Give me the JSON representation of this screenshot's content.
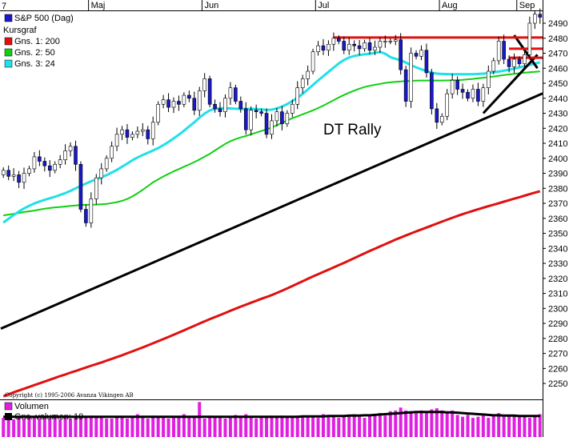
{
  "chart_data": {
    "type": "candlestick",
    "corner_label": "7",
    "months": [
      {
        "label": "Maj",
        "day": 17
      },
      {
        "label": "Jun",
        "day": 39
      },
      {
        "label": "Jul",
        "day": 61
      },
      {
        "label": "Aug",
        "day": 85
      },
      {
        "label": "Sep",
        "day": 100
      }
    ],
    "days": 105,
    "ylim": [
      2241,
      2498
    ],
    "yticks": [
      2250,
      2260,
      2270,
      2280,
      2290,
      2300,
      2310,
      2320,
      2330,
      2340,
      2350,
      2360,
      2370,
      2380,
      2390,
      2400,
      2410,
      2420,
      2430,
      2440,
      2450,
      2460,
      2470,
      2480,
      2490
    ],
    "legend": {
      "series": "S&P 500 (Dag)",
      "kursgraf": "Kursgraf",
      "ma1": "Gns. 1: 200",
      "ma2": "Gns. 2: 50",
      "ma3": "Gns. 3: 24"
    },
    "colors": {
      "up": "#ffffff",
      "down": "#1a1ac8",
      "ma200": "#e01010",
      "ma50": "#10d010",
      "ma24": "#20e0e8",
      "trend": "#000000",
      "resistance": "#e01010",
      "volume": "#e020e0",
      "volume_avg": "#000000"
    },
    "closes": [
      2392,
      2388,
      2389,
      2384,
      2390,
      2393,
      2401,
      2398,
      2395,
      2392,
      2396,
      2399,
      2405,
      2408,
      2396,
      2366,
      2357,
      2373,
      2387,
      2393,
      2400,
      2408,
      2416,
      2419,
      2414,
      2416,
      2418,
      2419,
      2413,
      2424,
      2436,
      2439,
      2434,
      2438,
      2436,
      2442,
      2440,
      2432,
      2445,
      2453,
      2436,
      2433,
      2431,
      2440,
      2447,
      2438,
      2433,
      2419,
      2432,
      2431,
      2430,
      2416,
      2425,
      2431,
      2423,
      2430,
      2436,
      2447,
      2453,
      2458,
      2471,
      2475,
      2472,
      2476,
      2480,
      2478,
      2472,
      2476,
      2475,
      2473,
      2477,
      2472,
      2474,
      2478,
      2478,
      2478,
      2479,
      2459,
      2438,
      2470,
      2468,
      2472,
      2457,
      2433,
      2424,
      2428,
      2443,
      2452,
      2446,
      2444,
      2440,
      2446,
      2438,
      2447,
      2458,
      2465,
      2478,
      2466,
      2461,
      2466,
      2463,
      2469,
      2490,
      2496,
      2494
    ],
    "ma200": [
      2241.5,
      2242.8,
      2244.1,
      2245.3,
      2246.5,
      2247.7,
      2248.9,
      2250.1,
      2251.3,
      2252.5,
      2253.7,
      2254.9,
      2256.0,
      2257.2,
      2258.3,
      2259.5,
      2260.6,
      2261.8,
      2262.9,
      2264.0,
      2265.2,
      2266.4,
      2267.6,
      2268.8,
      2270.1,
      2271.4,
      2272.7,
      2274.0,
      2275.4,
      2276.8,
      2278.2,
      2279.6,
      2281.0,
      2282.5,
      2283.9,
      2285.4,
      2286.9,
      2288.4,
      2289.9,
      2291.4,
      2292.8,
      2294.2,
      2295.6,
      2297.0,
      2298.4,
      2299.8,
      2301.2,
      2302.5,
      2303.8,
      2305.1,
      2306.4,
      2307.6,
      2308.9,
      2310.3,
      2311.8,
      2313.3,
      2314.9,
      2316.5,
      2318.1,
      2319.7,
      2321.3,
      2322.8,
      2324.3,
      2325.8,
      2327.3,
      2328.8,
      2330.3,
      2331.9,
      2333.5,
      2335.1,
      2336.7,
      2338.3,
      2339.8,
      2341.3,
      2342.8,
      2344.3,
      2345.8,
      2347.2,
      2348.6,
      2350.0,
      2351.3,
      2352.6,
      2353.9,
      2355.2,
      2356.5,
      2357.8,
      2359.1,
      2360.4,
      2361.6,
      2362.8,
      2363.9,
      2365.0,
      2366.1,
      2367.1,
      2368.1,
      2369.1,
      2370.1,
      2371.1,
      2372.1,
      2373.1,
      2374.1,
      2375.1,
      2376.1,
      2377.1,
      2378.1
    ],
    "ma50": [
      2362.0,
      2362.5,
      2363.0,
      2363.6,
      2364.2,
      2364.7,
      2365.2,
      2365.8,
      2366.4,
      2366.9,
      2367.3,
      2367.6,
      2367.9,
      2368.3,
      2368.6,
      2368.9,
      2369.0,
      2369.1,
      2369.2,
      2369.4,
      2369.6,
      2370.2,
      2370.8,
      2371.7,
      2372.9,
      2374.6,
      2376.7,
      2379.0,
      2381.5,
      2384.0,
      2386.0,
      2387.9,
      2389.6,
      2391.3,
      2392.8,
      2394.4,
      2395.9,
      2397.5,
      2399.2,
      2401.1,
      2403.0,
      2405.2,
      2407.4,
      2409.6,
      2411.4,
      2412.8,
      2413.9,
      2414.9,
      2416.0,
      2417.1,
      2418.2,
      2419.3,
      2420.5,
      2422.0,
      2423.6,
      2425.2,
      2426.7,
      2428.0,
      2429.3,
      2430.6,
      2432.0,
      2433.5,
      2435.1,
      2436.9,
      2438.7,
      2440.5,
      2442.2,
      2443.7,
      2445.1,
      2446.4,
      2447.5,
      2448.3,
      2449.0,
      2449.6,
      2450.2,
      2450.6,
      2450.9,
      2451.2,
      2451.4,
      2451.6,
      2451.7,
      2451.8,
      2451.8,
      2451.8,
      2451.8,
      2451.8,
      2451.9,
      2452.0,
      2452.1,
      2452.3,
      2452.6,
      2452.9,
      2453.3,
      2453.7,
      2454.1,
      2454.5,
      2455.0,
      2455.5,
      2455.9,
      2456.3,
      2456.7,
      2457.0,
      2457.3,
      2457.6,
      2457.9
    ],
    "ma24": [
      2357.2,
      2359.7,
      2362.2,
      2364.6,
      2366.6,
      2368.4,
      2369.9,
      2371.2,
      2372.3,
      2373.4,
      2374.4,
      2375.6,
      2376.8,
      2378.3,
      2380.0,
      2381.6,
      2383.2,
      2384.7,
      2386.0,
      2387.4,
      2388.8,
      2390.5,
      2392.3,
      2394.4,
      2396.5,
      2398.7,
      2400.6,
      2402.2,
      2403.7,
      2405.2,
      2406.8,
      2408.8,
      2410.9,
      2413.3,
      2415.7,
      2418.4,
      2421.2,
      2424.0,
      2427.1,
      2429.8,
      2431.9,
      2433.0,
      2433.3,
      2433.3,
      2433.2,
      2433.0,
      2432.9,
      2432.9,
      2432.9,
      2432.8,
      2432.5,
      2432.3,
      2432.4,
      2433.2,
      2434.5,
      2436.1,
      2438.1,
      2440.3,
      2442.9,
      2445.8,
      2448.9,
      2451.9,
      2454.7,
      2457.6,
      2460.4,
      2463.2,
      2465.5,
      2467.2,
      2468.2,
      2468.8,
      2469.3,
      2469.6,
      2470.3,
      2470.8,
      2469.7,
      2467.4,
      2466.3,
      2465.4,
      2463.8,
      2462.0,
      2460.6,
      2459.3,
      2458.1,
      2457.1,
      2456.4,
      2456.2,
      2456.1,
      2456.0,
      2456.0,
      2456.0,
      2456.0,
      2456.0,
      2456.2,
      2456.4,
      2456.8,
      2457.3,
      2457.8,
      2458.4,
      2459.0,
      2459.7,
      2460.5,
      2461.3,
      2462.2,
      2463.1,
      2464.0
    ],
    "trendlines": [
      {
        "x1": -0.5,
        "y1": 2286.5,
        "x2": 104.5,
        "y2": 2443.2
      },
      {
        "x1": 93.0,
        "y1": 2430.0,
        "x2": 103.5,
        "y2": 2469.0
      },
      {
        "x1": 99.0,
        "y1": 2482.0,
        "x2": 103.5,
        "y2": 2460.0
      }
    ],
    "resistance_lines": [
      {
        "x1": 64.0,
        "x2": 104.5,
        "y": 2480.5
      },
      {
        "x1": 98.0,
        "x2": 104.5,
        "y": 2473.0
      },
      {
        "x1": 98.0,
        "x2": 104.5,
        "y": 2467.0
      }
    ],
    "annotation": {
      "text": "DT Rally",
      "x": 62,
      "y": 2416
    },
    "copyright": "Copyright (c) 1995-2006 Avanza Vikingen AB",
    "volume": {
      "title": "Volumen",
      "avg_label": "Gns. volumen: 10",
      "bars": [
        0.52,
        0.46,
        0.48,
        0.58,
        0.5,
        0.55,
        0.52,
        0.5,
        0.55,
        0.5,
        0.6,
        0.48,
        0.52,
        0.5,
        0.55,
        0.58,
        0.55,
        0.58,
        0.52,
        0.55,
        0.5,
        0.5,
        0.55,
        0.52,
        0.5,
        0.55,
        0.62,
        0.55,
        0.5,
        0.58,
        0.55,
        0.52,
        0.5,
        0.56,
        0.55,
        0.62,
        0.52,
        0.55,
        0.95,
        0.5,
        0.58,
        0.55,
        0.52,
        0.5,
        0.56,
        0.6,
        0.58,
        0.62,
        0.52,
        0.5,
        0.52,
        0.56,
        0.58,
        0.52,
        0.58,
        0.55,
        0.52,
        0.58,
        0.55,
        0.58,
        0.55,
        0.52,
        0.62,
        0.55,
        0.58,
        0.52,
        0.55,
        0.58,
        0.62,
        0.55,
        0.52,
        0.58,
        0.62,
        0.65,
        0.58,
        0.7,
        0.72,
        0.8,
        0.72,
        0.7,
        0.65,
        0.72,
        0.68,
        0.75,
        0.78,
        0.72,
        0.68,
        0.72,
        0.6,
        0.55,
        0.6,
        0.52,
        0.55,
        0.58,
        0.52,
        0.6,
        0.65,
        0.55,
        0.58,
        0.6,
        0.55,
        0.58,
        0.52,
        0.55,
        0.62
      ],
      "avg": [
        0.55,
        0.55,
        0.55,
        0.55,
        0.55,
        0.55,
        0.55,
        0.55,
        0.55,
        0.55,
        0.55,
        0.55,
        0.55,
        0.55,
        0.55,
        0.55,
        0.55,
        0.55,
        0.55,
        0.55,
        0.55,
        0.55,
        0.55,
        0.55,
        0.55,
        0.55,
        0.55,
        0.55,
        0.55,
        0.55,
        0.55,
        0.55,
        0.55,
        0.55,
        0.55,
        0.55,
        0.55,
        0.55,
        0.55,
        0.55,
        0.55,
        0.55,
        0.55,
        0.55,
        0.55,
        0.55,
        0.55,
        0.55,
        0.55,
        0.55,
        0.55,
        0.55,
        0.55,
        0.55,
        0.55,
        0.55,
        0.55,
        0.55,
        0.56,
        0.56,
        0.56,
        0.56,
        0.56,
        0.57,
        0.57,
        0.57,
        0.57,
        0.58,
        0.58,
        0.58,
        0.59,
        0.59,
        0.6,
        0.61,
        0.62,
        0.63,
        0.64,
        0.65,
        0.66,
        0.67,
        0.68,
        0.68,
        0.68,
        0.68,
        0.68,
        0.68,
        0.67,
        0.67,
        0.66,
        0.65,
        0.64,
        0.63,
        0.62,
        0.61,
        0.6,
        0.59,
        0.59,
        0.58,
        0.58,
        0.58,
        0.57,
        0.57,
        0.57,
        0.57,
        0.57
      ]
    }
  }
}
